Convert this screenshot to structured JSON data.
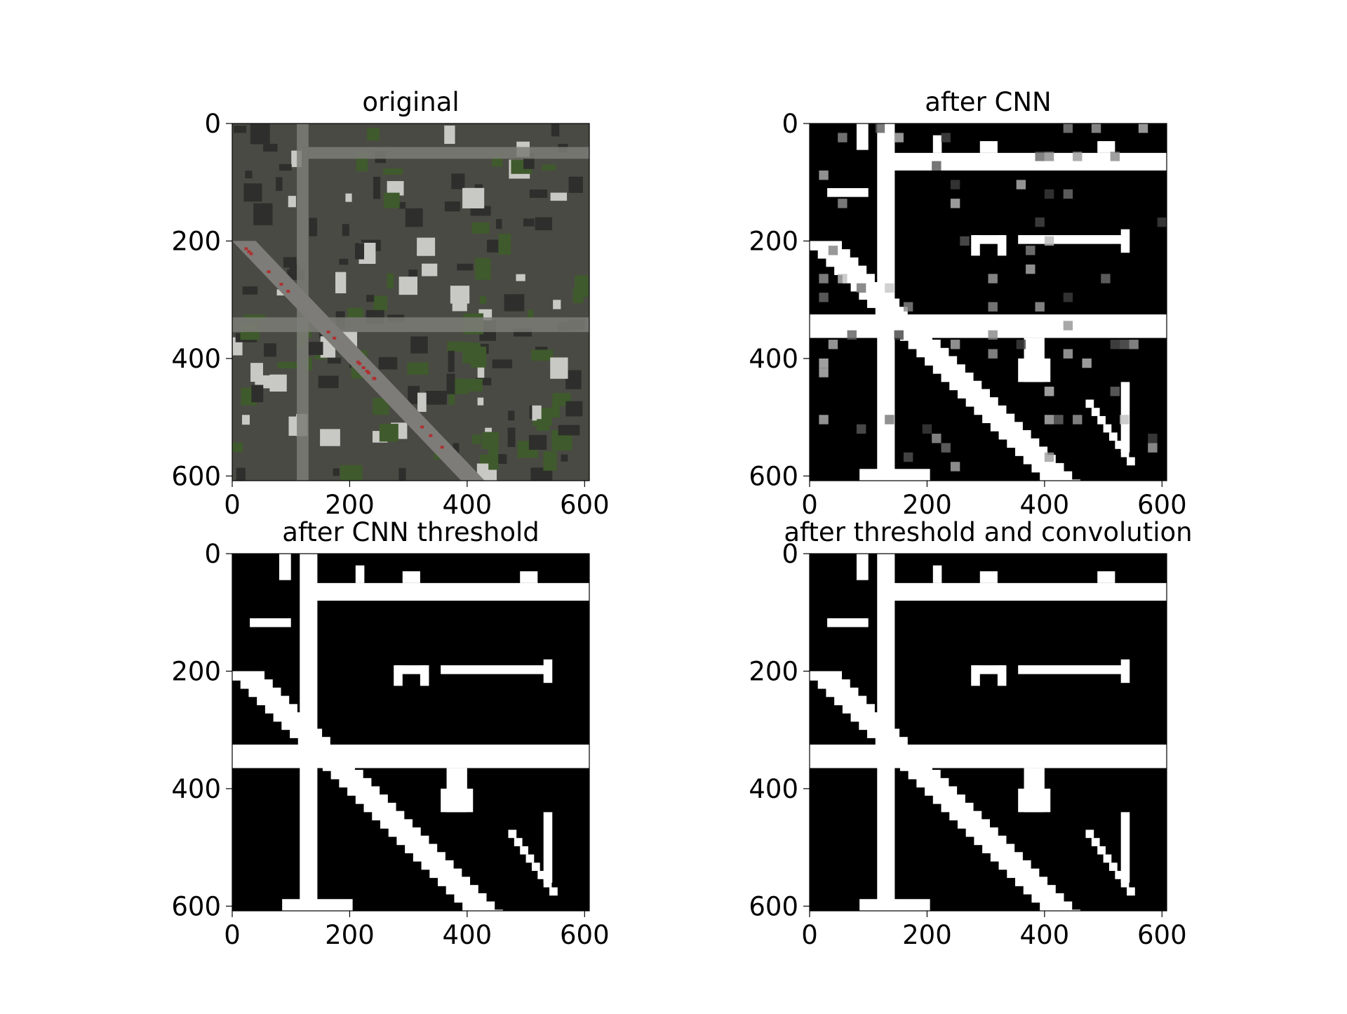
{
  "chart_data": [
    {
      "type": "heatmap",
      "panel": "original",
      "title": "original",
      "image_kind": "satellite-photo",
      "xlim": [
        0,
        608
      ],
      "ylim": [
        608,
        0
      ],
      "xticks": [
        0,
        200,
        400,
        600
      ],
      "yticks": [
        0,
        200,
        400,
        600
      ],
      "xlabel": "",
      "ylabel": ""
    },
    {
      "type": "heatmap",
      "panel": "after-cnn",
      "title": "after CNN",
      "image_kind": "grayscale-probability",
      "xlim": [
        0,
        608
      ],
      "ylim": [
        608,
        0
      ],
      "xticks": [
        0,
        200,
        400,
        600
      ],
      "yticks": [
        0,
        200,
        400,
        600
      ],
      "xlabel": "",
      "ylabel": ""
    },
    {
      "type": "heatmap",
      "panel": "after-cnn-threshold",
      "title": "after CNN threshold",
      "image_kind": "binary-mask",
      "xlim": [
        0,
        608
      ],
      "ylim": [
        608,
        0
      ],
      "xticks": [
        0,
        200,
        400,
        600
      ],
      "yticks": [
        0,
        200,
        400,
        600
      ],
      "xlabel": "",
      "ylabel": ""
    },
    {
      "type": "heatmap",
      "panel": "after-threshold-and-convolution",
      "title": "after threshold and convolution",
      "image_kind": "binary-mask",
      "xlim": [
        0,
        608
      ],
      "ylim": [
        608,
        0
      ],
      "xticks": [
        0,
        200,
        400,
        600
      ],
      "yticks": [
        0,
        200,
        400,
        600
      ],
      "xlabel": "",
      "ylabel": ""
    }
  ],
  "colors": {
    "mask_background": "#000000",
    "mask_foreground": "#ffffff",
    "cnn_soft": "#b0b0b0",
    "photo_base": "#4a4a44",
    "photo_roof_dark": "#2e2f2c",
    "photo_roof_light": "#c8c8c4",
    "photo_tree": "#3f5a2c",
    "photo_road": "#7d7c78",
    "photo_car_red": "#b03030"
  }
}
